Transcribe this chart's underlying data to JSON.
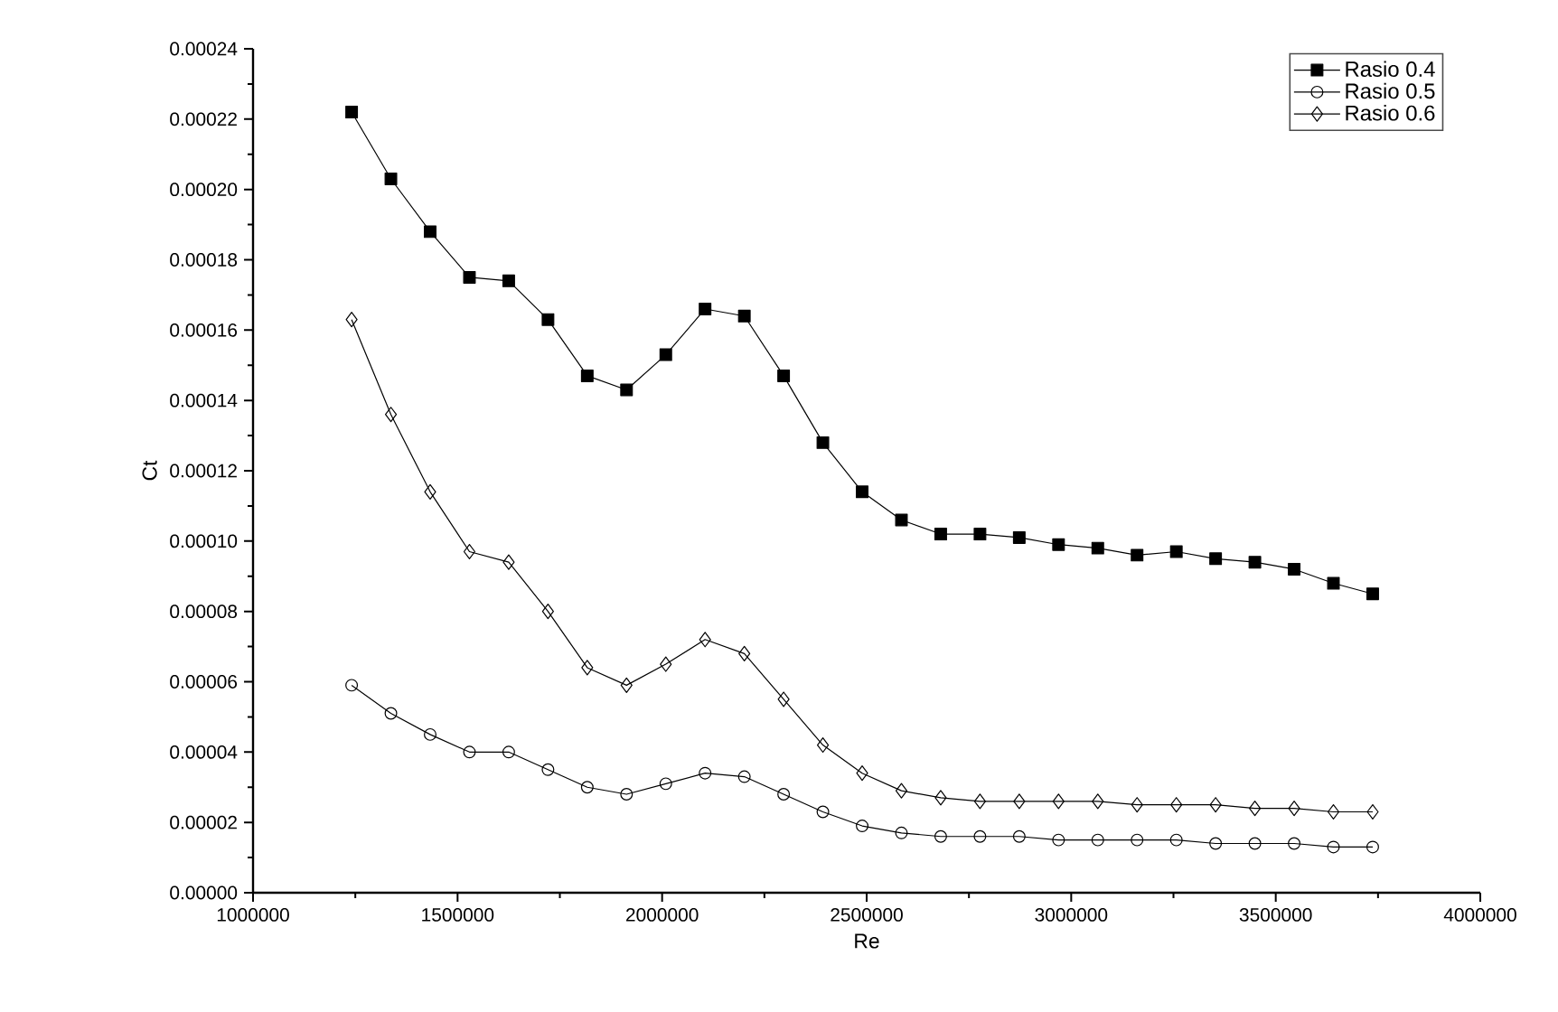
{
  "chart_data": {
    "type": "line",
    "xlabel": "Re",
    "ylabel": "Ct",
    "x": [
      1241000,
      1337000,
      1433000,
      1529000,
      1625000,
      1721000,
      1817000,
      1913000,
      2009000,
      2105000,
      2201000,
      2297000,
      2393000,
      2489000,
      2585000,
      2681000,
      2777000,
      2873000,
      2969000,
      3065000,
      3161000,
      3257000,
      3353000,
      3449000,
      3545000,
      3641000,
      3737000
    ],
    "series": [
      {
        "name": "Rasio 0.4",
        "color": "#000000",
        "marker": "square",
        "values": [
          0.000222,
          0.000203,
          0.000188,
          0.000175,
          0.000174,
          0.000163,
          0.000147,
          0.000143,
          0.000153,
          0.000166,
          0.000164,
          0.000147,
          0.000128,
          0.000114,
          0.000106,
          0.000102,
          0.000102,
          0.000101,
          9.9e-05,
          9.8e-05,
          9.6e-05,
          9.7e-05,
          9.5e-05,
          9.4e-05,
          9.2e-05,
          8.8e-05,
          8.5e-05
        ]
      },
      {
        "name": "Rasio 0.5",
        "color": "#000000",
        "marker": "circle",
        "values": [
          5.9e-05,
          5.1e-05,
          4.5e-05,
          4e-05,
          4e-05,
          3.5e-05,
          3e-05,
          2.8e-05,
          3.1e-05,
          3.4e-05,
          3.3e-05,
          2.8e-05,
          2.3e-05,
          1.9e-05,
          1.7e-05,
          1.6e-05,
          1.6e-05,
          1.6e-05,
          1.5e-05,
          1.5e-05,
          1.5e-05,
          1.5e-05,
          1.4e-05,
          1.4e-05,
          1.4e-05,
          1.3e-05,
          1.3e-05
        ]
      },
      {
        "name": "Rasio 0.6",
        "color": "#000000",
        "marker": "diamond",
        "values": [
          0.000163,
          0.000136,
          0.000114,
          9.7e-05,
          9.4e-05,
          8e-05,
          6.4e-05,
          5.9e-05,
          6.5e-05,
          7.2e-05,
          6.8e-05,
          5.5e-05,
          4.2e-05,
          3.4e-05,
          2.9e-05,
          2.7e-05,
          2.6e-05,
          2.6e-05,
          2.6e-05,
          2.6e-05,
          2.5e-05,
          2.5e-05,
          2.5e-05,
          2.4e-05,
          2.4e-05,
          2.3e-05,
          2.3e-05
        ]
      }
    ],
    "xlim": [
      1000000,
      4000000
    ],
    "xticks": [
      1000000,
      1500000,
      2000000,
      2500000,
      3000000,
      3500000,
      4000000
    ],
    "ylim": [
      0,
      0.00024
    ],
    "yticks": [
      {
        "value": 0,
        "label": "0.00000"
      },
      {
        "value": 2e-05,
        "label": "0.00002"
      },
      {
        "value": 4e-05,
        "label": "0.00004"
      },
      {
        "value": 6e-05,
        "label": "0.00006"
      },
      {
        "value": 8e-05,
        "label": "0.00008"
      },
      {
        "value": 0.0001,
        "label": "0.00010"
      },
      {
        "value": 0.00012,
        "label": "0.00012"
      },
      {
        "value": 0.00014,
        "label": "0.00014"
      },
      {
        "value": 0.00016,
        "label": "0.00016"
      },
      {
        "value": 0.00018,
        "label": "0.00018"
      },
      {
        "value": 0.0002,
        "label": "0.00020"
      },
      {
        "value": 0.00022,
        "label": "0.00022"
      },
      {
        "value": 0.00024,
        "label": "0.00024"
      }
    ],
    "grid": false,
    "legend": "top right",
    "line_style": "solid"
  }
}
